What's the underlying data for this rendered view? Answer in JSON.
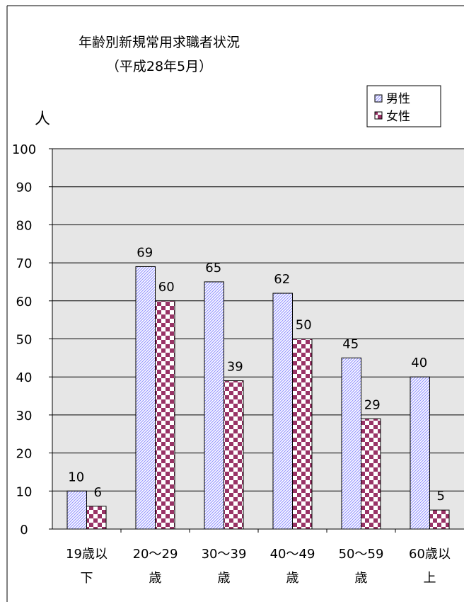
{
  "chart_data": {
    "type": "bar",
    "title_line1": "年齢別新規常用求職者状況",
    "title_line2": "（平成28年5月）",
    "ylabel": "人",
    "xlabel": "",
    "ylim": [
      0,
      100
    ],
    "yticks": [
      0,
      10,
      20,
      30,
      40,
      50,
      60,
      70,
      80,
      90,
      100
    ],
    "grid": true,
    "legend_position": "top-right",
    "categories": [
      [
        "19歳以",
        "下"
      ],
      [
        "20～29",
        "歳"
      ],
      [
        "30～39",
        "歳"
      ],
      [
        "40～49",
        "歳"
      ],
      [
        "50～59",
        "歳"
      ],
      [
        "60歳以",
        "上"
      ]
    ],
    "series": [
      {
        "name": "男性",
        "values": [
          10,
          69,
          65,
          62,
          45,
          40
        ],
        "color": "#9999ff",
        "pattern": "diagonal"
      },
      {
        "name": "女性",
        "values": [
          6,
          60,
          39,
          50,
          29,
          5
        ],
        "color": "#993366",
        "pattern": "checker"
      }
    ],
    "plot_background": "#e6e6e6"
  }
}
